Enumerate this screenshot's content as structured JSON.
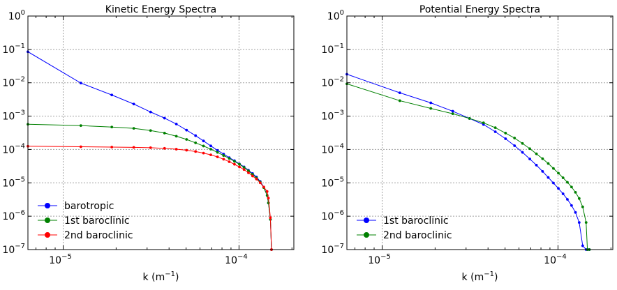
{
  "chart_data": [
    {
      "type": "line",
      "title": "Kinetic Energy Spectra",
      "xlabel": "k (m",
      "xlabel_sup": "−1",
      "xlabel_close": ")",
      "ylabel": "",
      "xscale": "log",
      "yscale": "log",
      "xlim": [
        6.3e-06,
        0.000205
      ],
      "ylim": [
        1e-07,
        1
      ],
      "x_ticks": [
        {
          "value": 1e-05,
          "label": "10",
          "sup": "−5"
        },
        {
          "value": 0.0001,
          "label": "10",
          "sup": "−4"
        }
      ],
      "y_ticks": [
        {
          "value": 1,
          "label": "10",
          "sup": "0"
        },
        {
          "value": 0.1,
          "label": "10",
          "sup": "−1"
        },
        {
          "value": 0.01,
          "label": "10",
          "sup": "−2"
        },
        {
          "value": 0.001,
          "label": "10",
          "sup": "−3"
        },
        {
          "value": 0.0001,
          "label": "10",
          "sup": "−4"
        },
        {
          "value": 1e-05,
          "label": "10",
          "sup": "−5"
        },
        {
          "value": 1e-06,
          "label": "10",
          "sup": "−6"
        },
        {
          "value": 1e-07,
          "label": "10",
          "sup": "−7"
        }
      ],
      "grid": true,
      "legend": "lower-left",
      "x": [
        6.3e-06,
        1.26e-05,
        1.89e-05,
        2.52e-05,
        3.14e-05,
        3.77e-05,
        4.4e-05,
        5.03e-05,
        5.66e-05,
        6.28e-05,
        6.91e-05,
        7.54e-05,
        8.17e-05,
        8.8e-05,
        9.42e-05,
        0.0001005,
        0.0001068,
        0.0001131,
        0.0001194,
        0.0001257,
        0.000132,
        0.0001382,
        0.0001445,
        0.000147,
        0.0001508,
        0.000153
      ],
      "series": [
        {
          "name": "barotropic",
          "color": "#0000ff",
          "values": [
            0.085,
            0.0098,
            0.0043,
            0.0023,
            0.00133,
            0.00087,
            0.00058,
            0.00038,
            0.00026,
            0.00018,
            0.000128,
            9.4e-05,
            7.3e-05,
            5.7e-05,
            4.6e-05,
            3.7e-05,
            3e-05,
            2.4e-05,
            1.9e-05,
            1.5e-05,
            1.1e-05,
            7.5e-06,
            4.2e-06,
            2.5e-06,
            8e-07,
            1e-07
          ]
        },
        {
          "name": "1st baroclinic",
          "color": "#008000",
          "values": [
            0.00057,
            0.00052,
            0.00047,
            0.00043,
            0.00037,
            0.00031,
            0.00025,
            0.0002,
            0.000158,
            0.000127,
            0.000102,
            8.2e-05,
            6.6e-05,
            5.4e-05,
            4.4e-05,
            3.6e-05,
            2.9e-05,
            2.3e-05,
            1.8e-05,
            1.4e-05,
            1.05e-05,
            7.2e-06,
            4.2e-06,
            2.5e-06,
            8e-07,
            1e-07
          ]
        },
        {
          "name": "2nd baroclinic",
          "color": "#ff0000",
          "values": [
            0.000125,
            0.000121,
            0.000118,
            0.000116,
            0.000113,
            0.000108,
            0.000102,
            9.5e-05,
            8.7e-05,
            7.8e-05,
            6.9e-05,
            6e-05,
            5.1e-05,
            4.3e-05,
            3.6e-05,
            3e-05,
            2.5e-05,
            2e-05,
            1.6e-05,
            1.3e-05,
            1e-05,
            7.5e-06,
            5.5e-06,
            3.5e-06,
            9e-07,
            1e-07
          ]
        }
      ]
    },
    {
      "type": "line",
      "title": "Potential Energy Spectra",
      "xlabel": "k (m",
      "xlabel_sup": "−1",
      "xlabel_close": ")",
      "ylabel": "",
      "xscale": "log",
      "yscale": "log",
      "xlim": [
        6.3e-06,
        0.000205
      ],
      "ylim": [
        1e-07,
        1
      ],
      "x_ticks": [
        {
          "value": 1e-05,
          "label": "10",
          "sup": "−5"
        },
        {
          "value": 0.0001,
          "label": "10",
          "sup": "−4"
        }
      ],
      "y_ticks": [
        {
          "value": 1,
          "label": "10",
          "sup": "0"
        },
        {
          "value": 0.1,
          "label": "10",
          "sup": "−1"
        },
        {
          "value": 0.01,
          "label": "10",
          "sup": "−2"
        },
        {
          "value": 0.001,
          "label": "10",
          "sup": "−3"
        },
        {
          "value": 0.0001,
          "label": "10",
          "sup": "−4"
        },
        {
          "value": 1e-05,
          "label": "10",
          "sup": "−5"
        },
        {
          "value": 1e-06,
          "label": "10",
          "sup": "−6"
        },
        {
          "value": 1e-07,
          "label": "10",
          "sup": "−7"
        }
      ],
      "grid": true,
      "legend": "lower-left",
      "x": [
        6.3e-06,
        1.26e-05,
        1.89e-05,
        2.52e-05,
        3.14e-05,
        3.77e-05,
        4.4e-05,
        5.03e-05,
        5.66e-05,
        6.28e-05,
        6.91e-05,
        7.54e-05,
        8.17e-05,
        8.8e-05,
        9.42e-05,
        0.0001005,
        0.0001068,
        0.0001131,
        0.0001194,
        0.0001257,
        0.000132,
        0.0001382,
        0.0001445,
        0.000147,
        0.0001508
      ],
      "series": [
        {
          "name": "1st baroclinic",
          "color": "#0000ff",
          "values": [
            0.018,
            0.005,
            0.0025,
            0.0014,
            0.00085,
            0.00056,
            0.00034,
            0.00021,
            0.00013,
            8.2e-05,
            5.2e-05,
            3.4e-05,
            2.2e-05,
            1.45e-05,
            9.9e-06,
            6.8e-06,
            4.7e-06,
            3.2e-06,
            2.1e-06,
            1.3e-06,
            6.5e-07,
            1.3e-07,
            1e-07,
            1e-07,
            1e-07
          ]
        },
        {
          "name": "2nd baroclinic",
          "color": "#008000",
          "values": [
            0.0093,
            0.0029,
            0.0017,
            0.00118,
            0.00085,
            0.00063,
            0.00045,
            0.00031,
            0.00022,
            0.000152,
            0.000106,
            7.4e-05,
            5.3e-05,
            3.8e-05,
            2.7e-05,
            1.95e-05,
            1.42e-05,
            1.04e-05,
            7.5e-06,
            5.2e-06,
            3.4e-06,
            1.9e-06,
            6.5e-07,
            1e-07,
            1e-07
          ]
        }
      ]
    }
  ]
}
